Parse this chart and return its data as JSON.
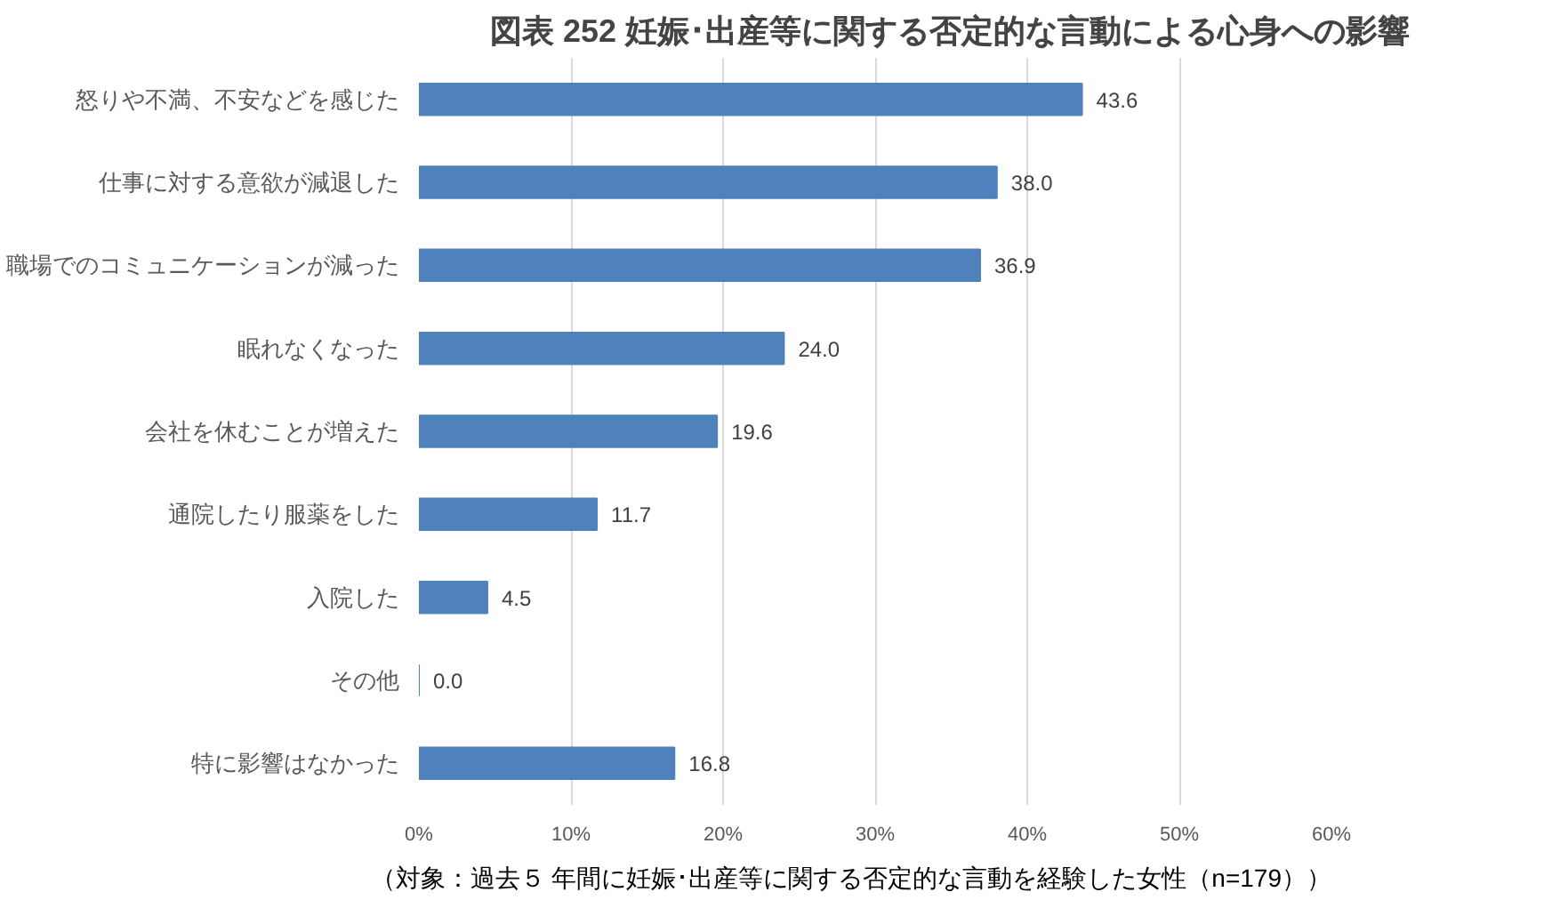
{
  "chart_data": {
    "type": "bar",
    "orientation": "horizontal",
    "title": "図表 252 妊娠･出産等に関する否定的な言動による心身への影響",
    "categories": [
      "怒りや不満、不安などを感じた",
      "仕事に対する意欲が減退した",
      "職場でのコミュニケーションが減った",
      "眠れなくなった",
      "会社を休むことが増えた",
      "通院したり服薬をした",
      "入院した",
      "その他",
      "特に影響はなかった"
    ],
    "values": [
      43.6,
      38.0,
      36.9,
      24.0,
      19.6,
      11.7,
      4.5,
      0.0,
      16.8
    ],
    "value_labels": [
      "43.6",
      "38.0",
      "36.9",
      "24.0",
      "19.6",
      "11.7",
      "4.5",
      "0.0",
      "16.8"
    ],
    "color": "#4f81bd",
    "grid": "x",
    "xlim": [
      0,
      60
    ],
    "xticks": [
      {
        "value": 0,
        "label": "0%"
      },
      {
        "value": 10,
        "label": "10%"
      },
      {
        "value": 20,
        "label": "20%"
      },
      {
        "value": 30,
        "label": "30%"
      },
      {
        "value": 40,
        "label": "40%"
      },
      {
        "value": 50,
        "label": "50%"
      },
      {
        "value": 60,
        "label": "60%"
      }
    ],
    "annotations": [
      "（対象：過去５ 年間に妊娠･出産等に関する否定的な言動を経験した女性（n=179））"
    ]
  }
}
